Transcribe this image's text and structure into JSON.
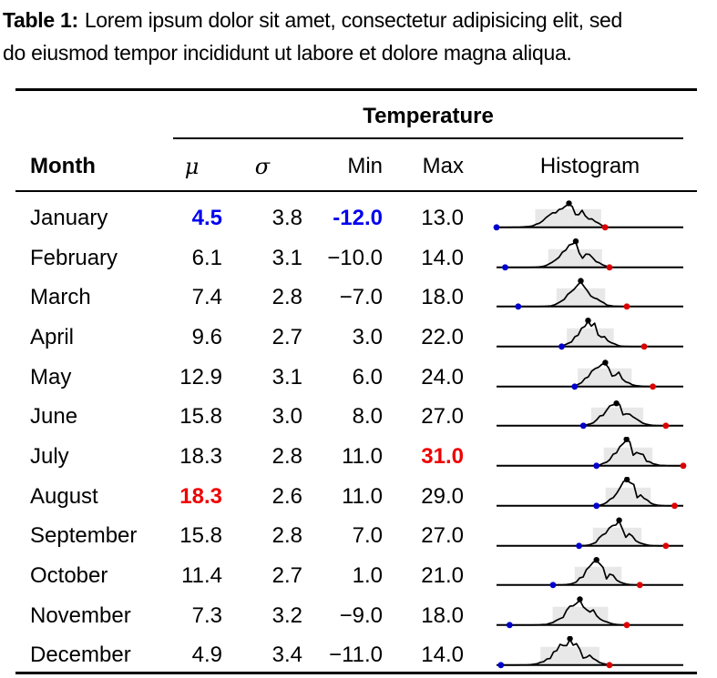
{
  "caption": {
    "label": "Table 1:",
    "line1": "Lorem ipsum dolor sit amet, consectetur adipisicing elit, sed",
    "line2": "do eiusmod tempor incididunt ut labore et dolore magna aliqua."
  },
  "header": {
    "group": "Temperature",
    "month": "Month",
    "mu": "μ",
    "sigma": "σ",
    "min": "Min",
    "max": "Max",
    "histogram": "Histogram"
  },
  "colors": {
    "highlight_blue": "#0000ee",
    "highlight_red": "#ee0000",
    "rule_black": "#000000"
  },
  "sparkline": {
    "axis_min": -12,
    "axis_max": 31,
    "band_sigma": 2,
    "band_color": "#e8e8e8",
    "curve_color": "#000000",
    "min_dot_color": "#0000cc",
    "max_dot_color": "#dd0000",
    "peak_dot_color": "#000000"
  },
  "rows": [
    {
      "month": "January",
      "mu": "4.5",
      "sigma": "3.8",
      "min": "-12.0",
      "max": "13.0",
      "values": {
        "mu": 4.5,
        "sigma": 3.8,
        "min": -12.0,
        "max": 13.0
      },
      "highlights": {
        "mu": "blue",
        "min": "blue"
      }
    },
    {
      "month": "February",
      "mu": "6.1",
      "sigma": "3.1",
      "min": "−10.0",
      "max": "14.0",
      "values": {
        "mu": 6.1,
        "sigma": 3.1,
        "min": -10.0,
        "max": 14.0
      },
      "highlights": {}
    },
    {
      "month": "March",
      "mu": "7.4",
      "sigma": "2.8",
      "min": "−7.0",
      "max": "18.0",
      "values": {
        "mu": 7.4,
        "sigma": 2.8,
        "min": -7.0,
        "max": 18.0
      },
      "highlights": {}
    },
    {
      "month": "April",
      "mu": "9.6",
      "sigma": "2.7",
      "min": "3.0",
      "max": "22.0",
      "values": {
        "mu": 9.6,
        "sigma": 2.7,
        "min": 3.0,
        "max": 22.0
      },
      "highlights": {}
    },
    {
      "month": "May",
      "mu": "12.9",
      "sigma": "3.1",
      "min": "6.0",
      "max": "24.0",
      "values": {
        "mu": 12.9,
        "sigma": 3.1,
        "min": 6.0,
        "max": 24.0
      },
      "highlights": {}
    },
    {
      "month": "June",
      "mu": "15.8",
      "sigma": "3.0",
      "min": "8.0",
      "max": "27.0",
      "values": {
        "mu": 15.8,
        "sigma": 3.0,
        "min": 8.0,
        "max": 27.0
      },
      "highlights": {}
    },
    {
      "month": "July",
      "mu": "18.3",
      "sigma": "2.8",
      "min": "11.0",
      "max": "31.0",
      "values": {
        "mu": 18.3,
        "sigma": 2.8,
        "min": 11.0,
        "max": 31.0
      },
      "highlights": {
        "max": "red"
      }
    },
    {
      "month": "August",
      "mu": "18.3",
      "sigma": "2.6",
      "min": "11.0",
      "max": "29.0",
      "values": {
        "mu": 18.3,
        "sigma": 2.6,
        "min": 11.0,
        "max": 29.0
      },
      "highlights": {
        "mu": "red"
      }
    },
    {
      "month": "September",
      "mu": "15.8",
      "sigma": "2.8",
      "min": "7.0",
      "max": "27.0",
      "values": {
        "mu": 15.8,
        "sigma": 2.8,
        "min": 7.0,
        "max": 27.0
      },
      "highlights": {}
    },
    {
      "month": "October",
      "mu": "11.4",
      "sigma": "2.7",
      "min": "1.0",
      "max": "21.0",
      "values": {
        "mu": 11.4,
        "sigma": 2.7,
        "min": 1.0,
        "max": 21.0
      },
      "highlights": {}
    },
    {
      "month": "November",
      "mu": "7.3",
      "sigma": "3.2",
      "min": "−9.0",
      "max": "18.0",
      "values": {
        "mu": 7.3,
        "sigma": 3.2,
        "min": -9.0,
        "max": 18.0
      },
      "highlights": {}
    },
    {
      "month": "December",
      "mu": "4.9",
      "sigma": "3.4",
      "min": "−11.0",
      "max": "14.0",
      "values": {
        "mu": 4.9,
        "sigma": 3.4,
        "min": -11.0,
        "max": 14.0
      },
      "highlights": {}
    }
  ]
}
